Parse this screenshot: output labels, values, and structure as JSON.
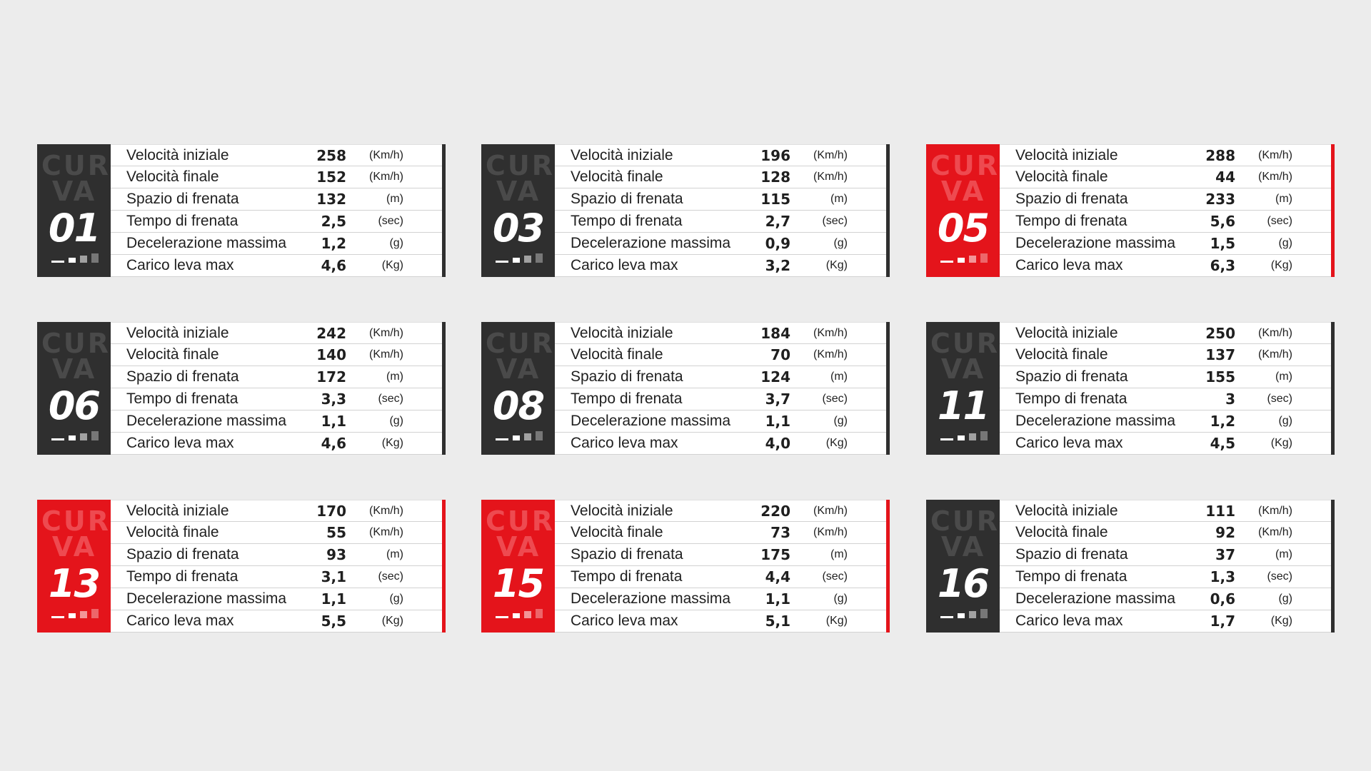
{
  "colors": {
    "background": "#ececec",
    "dark_badge": "#2f2f2f",
    "red_badge": "#e4141b"
  },
  "badge_word": [
    "CUR",
    "VA"
  ],
  "cards": [
    {
      "number": "01",
      "style": "dark",
      "rows": [
        {
          "label": "Velocità iniziale",
          "value": "258",
          "unit": "(Km/h)"
        },
        {
          "label": "Velocità finale",
          "value": "152",
          "unit": "(Km/h)"
        },
        {
          "label": "Spazio di frenata",
          "value": "132",
          "unit": "(m)"
        },
        {
          "label": "Tempo di frenata",
          "value": "2,5",
          "unit": "(sec)"
        },
        {
          "label": "Decelerazione massima",
          "value": "1,2",
          "unit": "(g)"
        },
        {
          "label": "Carico leva max",
          "value": "4,6",
          "unit": "(Kg)"
        }
      ]
    },
    {
      "number": "03",
      "style": "dark",
      "rows": [
        {
          "label": "Velocità iniziale",
          "value": "196",
          "unit": "(Km/h)"
        },
        {
          "label": "Velocità finale",
          "value": "128",
          "unit": "(Km/h)"
        },
        {
          "label": "Spazio di frenata",
          "value": "115",
          "unit": "(m)"
        },
        {
          "label": "Tempo di frenata",
          "value": "2,7",
          "unit": "(sec)"
        },
        {
          "label": "Decelerazione massima",
          "value": "0,9",
          "unit": "(g)"
        },
        {
          "label": "Carico leva max",
          "value": "3,2",
          "unit": "(Kg)"
        }
      ]
    },
    {
      "number": "05",
      "style": "red",
      "rows": [
        {
          "label": "Velocità iniziale",
          "value": "288",
          "unit": "(Km/h)"
        },
        {
          "label": "Velocità finale",
          "value": "44",
          "unit": "(Km/h)"
        },
        {
          "label": "Spazio di frenata",
          "value": "233",
          "unit": "(m)"
        },
        {
          "label": "Tempo di frenata",
          "value": "5,6",
          "unit": "(sec)"
        },
        {
          "label": "Decelerazione massima",
          "value": "1,5",
          "unit": "(g)"
        },
        {
          "label": "Carico leva max",
          "value": "6,3",
          "unit": "(Kg)"
        }
      ]
    },
    {
      "number": "06",
      "style": "dark",
      "rows": [
        {
          "label": "Velocità iniziale",
          "value": "242",
          "unit": "(Km/h)"
        },
        {
          "label": "Velocità finale",
          "value": "140",
          "unit": "(Km/h)"
        },
        {
          "label": "Spazio di frenata",
          "value": "172",
          "unit": "(m)"
        },
        {
          "label": "Tempo di frenata",
          "value": "3,3",
          "unit": "(sec)"
        },
        {
          "label": "Decelerazione massima",
          "value": "1,1",
          "unit": "(g)"
        },
        {
          "label": "Carico leva max",
          "value": "4,6",
          "unit": "(Kg)"
        }
      ]
    },
    {
      "number": "08",
      "style": "dark",
      "rows": [
        {
          "label": "Velocità iniziale",
          "value": "184",
          "unit": "(Km/h)"
        },
        {
          "label": "Velocità finale",
          "value": "70",
          "unit": "(Km/h)"
        },
        {
          "label": "Spazio di frenata",
          "value": "124",
          "unit": "(m)"
        },
        {
          "label": "Tempo di frenata",
          "value": "3,7",
          "unit": "(sec)"
        },
        {
          "label": "Decelerazione massima",
          "value": "1,1",
          "unit": "(g)"
        },
        {
          "label": "Carico leva max",
          "value": "4,0",
          "unit": "(Kg)"
        }
      ]
    },
    {
      "number": "11",
      "style": "dark",
      "rows": [
        {
          "label": "Velocità iniziale",
          "value": "250",
          "unit": "(Km/h)"
        },
        {
          "label": "Velocità finale",
          "value": "137",
          "unit": "(Km/h)"
        },
        {
          "label": "Spazio di frenata",
          "value": "155",
          "unit": "(m)"
        },
        {
          "label": "Tempo di frenata",
          "value": "3",
          "unit": "(sec)"
        },
        {
          "label": "Decelerazione massima",
          "value": "1,2",
          "unit": "(g)"
        },
        {
          "label": "Carico leva max",
          "value": "4,5",
          "unit": "(Kg)"
        }
      ]
    },
    {
      "number": "13",
      "style": "red",
      "rows": [
        {
          "label": "Velocità iniziale",
          "value": "170",
          "unit": "(Km/h)"
        },
        {
          "label": "Velocità finale",
          "value": "55",
          "unit": "(Km/h)"
        },
        {
          "label": "Spazio di frenata",
          "value": "93",
          "unit": "(m)"
        },
        {
          "label": "Tempo di frenata",
          "value": "3,1",
          "unit": "(sec)"
        },
        {
          "label": "Decelerazione massima",
          "value": "1,1",
          "unit": "(g)"
        },
        {
          "label": "Carico leva max",
          "value": "5,5",
          "unit": "(Kg)"
        }
      ]
    },
    {
      "number": "15",
      "style": "red",
      "rows": [
        {
          "label": "Velocità iniziale",
          "value": "220",
          "unit": "(Km/h)"
        },
        {
          "label": "Velocità finale",
          "value": "73",
          "unit": "(Km/h)"
        },
        {
          "label": "Spazio di frenata",
          "value": "175",
          "unit": "(m)"
        },
        {
          "label": "Tempo di frenata",
          "value": "4,4",
          "unit": "(sec)"
        },
        {
          "label": "Decelerazione massima",
          "value": "1,1",
          "unit": "(g)"
        },
        {
          "label": "Carico leva max",
          "value": "5,1",
          "unit": "(Kg)"
        }
      ]
    },
    {
      "number": "16",
      "style": "dark",
      "rows": [
        {
          "label": "Velocità iniziale",
          "value": "111",
          "unit": "(Km/h)"
        },
        {
          "label": "Velocità finale",
          "value": "92",
          "unit": "(Km/h)"
        },
        {
          "label": "Spazio di frenata",
          "value": "37",
          "unit": "(m)"
        },
        {
          "label": "Tempo di frenata",
          "value": "1,3",
          "unit": "(sec)"
        },
        {
          "label": "Decelerazione massima",
          "value": "0,6",
          "unit": "(g)"
        },
        {
          "label": "Carico leva max",
          "value": "1,7",
          "unit": "(Kg)"
        }
      ]
    }
  ]
}
